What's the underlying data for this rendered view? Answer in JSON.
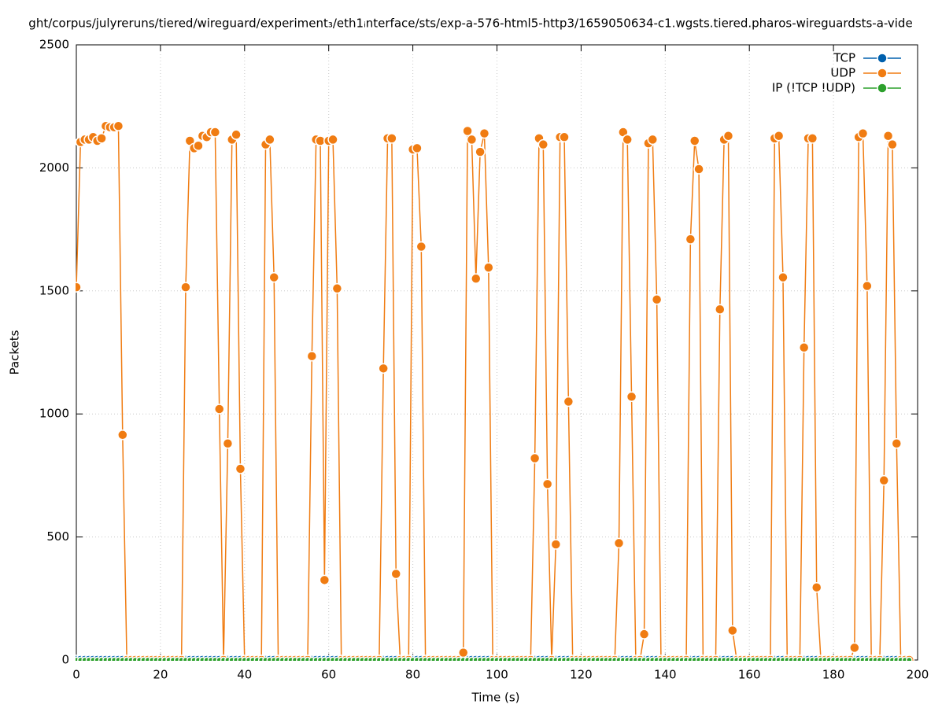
{
  "chart_data": {
    "type": "line",
    "title": "ght/corpus/julyreruns/tiered/wireguard/experiment₃/eth1ᵢnterface/sts/exp-a-576-html5-http3/1659050634-c1.wgsts.tiered.pharos-wireguardsts-a-vide",
    "x_label": "Time (s)",
    "y_label": "Packets",
    "x": [
      0,
      1,
      2,
      3,
      4,
      5,
      6,
      7,
      8,
      9,
      10,
      11,
      12,
      13,
      14,
      15,
      16,
      17,
      18,
      19,
      20,
      21,
      22,
      23,
      24,
      25,
      26,
      27,
      28,
      29,
      30,
      31,
      32,
      33,
      34,
      35,
      36,
      37,
      38,
      39,
      40,
      41,
      42,
      43,
      44,
      45,
      46,
      47,
      48,
      49,
      50,
      51,
      52,
      53,
      54,
      55,
      56,
      57,
      58,
      59,
      60,
      61,
      62,
      63,
      64,
      65,
      66,
      67,
      68,
      69,
      70,
      71,
      72,
      73,
      74,
      75,
      76,
      77,
      78,
      79,
      80,
      81,
      82,
      83,
      84,
      85,
      86,
      87,
      88,
      89,
      90,
      91,
      92,
      93,
      94,
      95,
      96,
      97,
      98,
      99,
      100,
      101,
      102,
      103,
      104,
      105,
      106,
      107,
      108,
      109,
      110,
      111,
      112,
      113,
      114,
      115,
      116,
      117,
      118,
      119,
      120,
      121,
      122,
      123,
      124,
      125,
      126,
      127,
      128,
      129,
      130,
      131,
      132,
      133,
      134,
      135,
      136,
      137,
      138,
      139,
      140,
      141,
      142,
      143,
      144,
      145,
      146,
      147,
      148,
      149,
      150,
      151,
      152,
      153,
      154,
      155,
      156,
      157,
      158,
      159,
      160,
      161,
      162,
      163,
      164,
      165,
      166,
      167,
      168,
      169,
      170,
      171,
      172,
      173,
      174,
      175,
      176,
      177,
      178,
      179,
      180,
      181,
      182,
      183,
      184,
      185,
      186,
      187,
      188,
      189,
      190,
      191,
      192,
      193,
      194,
      195,
      196,
      197,
      198
    ],
    "series": [
      {
        "name": "TCP",
        "color": "#0060ad",
        "values": [
          0,
          0,
          0,
          0,
          0,
          0,
          0,
          0,
          0,
          0,
          0,
          0,
          0,
          0,
          0,
          0,
          0,
          0,
          0,
          0,
          0,
          0,
          0,
          0,
          0,
          0,
          0,
          0,
          0,
          0,
          0,
          0,
          0,
          0,
          0,
          0,
          0,
          0,
          0,
          0,
          0,
          0,
          0,
          0,
          0,
          0,
          0,
          0,
          0,
          0,
          0,
          0,
          0,
          0,
          0,
          0,
          0,
          0,
          0,
          0,
          0,
          0,
          0,
          0,
          0,
          0,
          0,
          0,
          0,
          0,
          0,
          0,
          0,
          0,
          0,
          0,
          0,
          0,
          0,
          0,
          0,
          0,
          0,
          0,
          0,
          0,
          0,
          0,
          0,
          0,
          0,
          0,
          0,
          0,
          0,
          0,
          0,
          0,
          0,
          0,
          0,
          0,
          0,
          0,
          0,
          0,
          0,
          0,
          0,
          0,
          0,
          0,
          0,
          0,
          0,
          0,
          0,
          0,
          0,
          0,
          0,
          0,
          0,
          0,
          0,
          0,
          0,
          0,
          0,
          0,
          0,
          0,
          0,
          0,
          0,
          0,
          0,
          0,
          0,
          0,
          0,
          0,
          0,
          0,
          0,
          0,
          0,
          0,
          0,
          0,
          0,
          0,
          0,
          0,
          0,
          0,
          0,
          0,
          0,
          0,
          0,
          0,
          0,
          0,
          0,
          0,
          0,
          0,
          0,
          0,
          0,
          0,
          0,
          0,
          0,
          0,
          0,
          0,
          0,
          0,
          0,
          0,
          0,
          0,
          0,
          0,
          0,
          0,
          0,
          0,
          0,
          0,
          0,
          0,
          0,
          0,
          0,
          0,
          0
        ]
      },
      {
        "name": "UDP",
        "color": "#f07c12",
        "values": [
          1515,
          2105,
          2115,
          2115,
          2125,
          2110,
          2120,
          2170,
          2165,
          2165,
          2170,
          915,
          0,
          0,
          0,
          0,
          0,
          0,
          0,
          0,
          0,
          0,
          0,
          0,
          0,
          0,
          1515,
          2110,
          2080,
          2090,
          2130,
          2125,
          2145,
          2145,
          1020,
          0,
          880,
          2115,
          2135,
          777,
          0,
          0,
          0,
          0,
          0,
          2095,
          2115,
          1555,
          0,
          0,
          0,
          0,
          0,
          0,
          0,
          0,
          1235,
          2115,
          2110,
          325,
          2110,
          2115,
          1510,
          0,
          0,
          0,
          0,
          0,
          0,
          0,
          0,
          0,
          0,
          1185,
          2120,
          2120,
          350,
          0,
          0,
          0,
          2075,
          2080,
          1680,
          0,
          0,
          0,
          0,
          0,
          0,
          0,
          0,
          0,
          30,
          2150,
          2115,
          1550,
          2065,
          2140,
          1595,
          0,
          0,
          0,
          0,
          0,
          0,
          0,
          0,
          0,
          0,
          820,
          2120,
          2095,
          715,
          0,
          470,
          2125,
          2125,
          1050,
          0,
          0,
          0,
          0,
          0,
          0,
          0,
          0,
          0,
          0,
          0,
          475,
          2145,
          2115,
          1070,
          0,
          0,
          105,
          2100,
          2115,
          1465,
          0,
          0,
          0,
          0,
          0,
          0,
          0,
          1710,
          2110,
          1995,
          0,
          0,
          0,
          0,
          1425,
          2115,
          2130,
          120,
          0,
          0,
          0,
          0,
          0,
          0,
          0,
          0,
          0,
          2120,
          2130,
          1555,
          0,
          0,
          0,
          0,
          1270,
          2120,
          2120,
          295,
          0,
          0,
          0,
          0,
          0,
          0,
          0,
          0,
          50,
          2125,
          2140,
          1520,
          0,
          0,
          0,
          730,
          2130,
          2095,
          880,
          0,
          0,
          0
        ]
      },
      {
        "name": "IP (!TCP  !UDP)",
        "color": "#2ca02c",
        "values": [
          0,
          0,
          0,
          0,
          0,
          0,
          0,
          0,
          0,
          0,
          0,
          0,
          0,
          0,
          0,
          0,
          0,
          0,
          0,
          0,
          0,
          0,
          0,
          0,
          0,
          0,
          0,
          0,
          0,
          0,
          0,
          0,
          0,
          0,
          0,
          0,
          0,
          0,
          0,
          0,
          0,
          0,
          0,
          0,
          0,
          0,
          0,
          0,
          0,
          0,
          0,
          0,
          0,
          0,
          0,
          0,
          0,
          0,
          0,
          0,
          0,
          0,
          0,
          0,
          0,
          0,
          0,
          0,
          0,
          0,
          0,
          0,
          0,
          0,
          0,
          0,
          0,
          0,
          0,
          0,
          0,
          0,
          0,
          0,
          0,
          0,
          0,
          0,
          0,
          0,
          0,
          0,
          0,
          0,
          0,
          0,
          0,
          0,
          0,
          0,
          0,
          0,
          0,
          0,
          0,
          0,
          0,
          0,
          0,
          0,
          0,
          0,
          0,
          0,
          0,
          0,
          0,
          0,
          0,
          0,
          0,
          0,
          0,
          0,
          0,
          0,
          0,
          0,
          0,
          0,
          0,
          0,
          0,
          0,
          0,
          0,
          0,
          0,
          0,
          0,
          0,
          0,
          0,
          0,
          0,
          0,
          0,
          0,
          0,
          0,
          0,
          0,
          0,
          0,
          0,
          0,
          0,
          0,
          0,
          0,
          0,
          0,
          0,
          0,
          0,
          0,
          0,
          0,
          0,
          0,
          0,
          0,
          0,
          0,
          0,
          0,
          0,
          0,
          0,
          0,
          0,
          0,
          0,
          0,
          0,
          0,
          0,
          0,
          0,
          0,
          0,
          0,
          0,
          0,
          0,
          0,
          0,
          0,
          0
        ]
      }
    ],
    "xlim": [
      0,
      200
    ],
    "xticks": [
      0,
      20,
      40,
      60,
      80,
      100,
      120,
      140,
      160,
      180,
      200
    ],
    "ylim": [
      0,
      2500
    ],
    "yticks": [
      0,
      500,
      1000,
      1500,
      2000,
      2500
    ],
    "grid": true,
    "legend": "top-right"
  }
}
